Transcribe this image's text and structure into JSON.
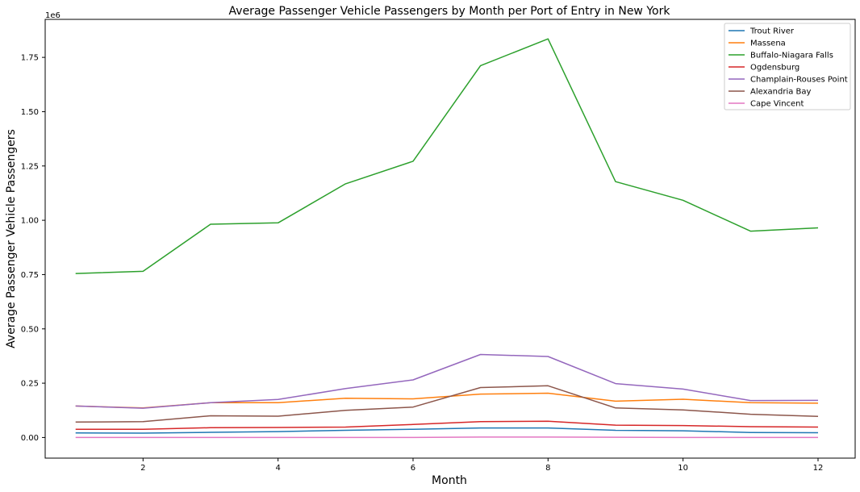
{
  "chart_data": {
    "type": "line",
    "title": "Average Passenger Vehicle Passengers by Month per Port of Entry in New York",
    "xlabel": "Month",
    "ylabel": "Average Passenger Vehicle Passengers",
    "y_offset_label": "1e6",
    "xlim": [
      0.55,
      12.55
    ],
    "ylim": [
      -95000,
      1925000
    ],
    "x_ticks": [
      2,
      4,
      6,
      8,
      10,
      12
    ],
    "y_ticks": [
      0,
      250000,
      500000,
      750000,
      1000000,
      1250000,
      1500000,
      1750000
    ],
    "y_tick_labels": [
      "0.00",
      "0.25",
      "0.50",
      "0.75",
      "1.00",
      "1.25",
      "1.50",
      "1.75"
    ],
    "grid": false,
    "legend_position": "top-right",
    "x": [
      1,
      2,
      3,
      4,
      5,
      6,
      7,
      8,
      9,
      10,
      11,
      12
    ],
    "series": [
      {
        "name": "Trout River",
        "color": "#1f77b4",
        "values": [
          21000,
          20000,
          24000,
          27000,
          33000,
          38000,
          44000,
          44000,
          33000,
          31000,
          23000,
          22000
        ]
      },
      {
        "name": "Massena",
        "color": "#ff7f0e",
        "values": [
          145000,
          136000,
          160000,
          160000,
          181000,
          178000,
          200000,
          204000,
          167000,
          176000,
          160000,
          158000
        ]
      },
      {
        "name": "Buffalo-Niagara Falls",
        "color": "#2ca02c",
        "values": [
          755000,
          765000,
          982000,
          988000,
          1168000,
          1272000,
          1712000,
          1835000,
          1178000,
          1092000,
          950000,
          965000
        ]
      },
      {
        "name": "Ogdensburg",
        "color": "#d62728",
        "values": [
          38000,
          38000,
          45000,
          46000,
          48000,
          60000,
          73000,
          75000,
          57000,
          55000,
          50000,
          48000
        ]
      },
      {
        "name": "Champlain-Rouses Point",
        "color": "#9467bd",
        "values": [
          145000,
          135000,
          160000,
          175000,
          225000,
          265000,
          382000,
          373000,
          248000,
          223000,
          170000,
          171000
        ]
      },
      {
        "name": "Alexandria Bay",
        "color": "#8c564b",
        "values": [
          71000,
          73000,
          100000,
          98000,
          125000,
          140000,
          230000,
          238000,
          136000,
          127000,
          107000,
          97000
        ]
      },
      {
        "name": "Cape Vincent",
        "color": "#e377c2",
        "values": [
          0,
          0,
          0,
          0,
          0,
          0,
          2000,
          2000,
          1000,
          0,
          0,
          0
        ]
      }
    ]
  }
}
